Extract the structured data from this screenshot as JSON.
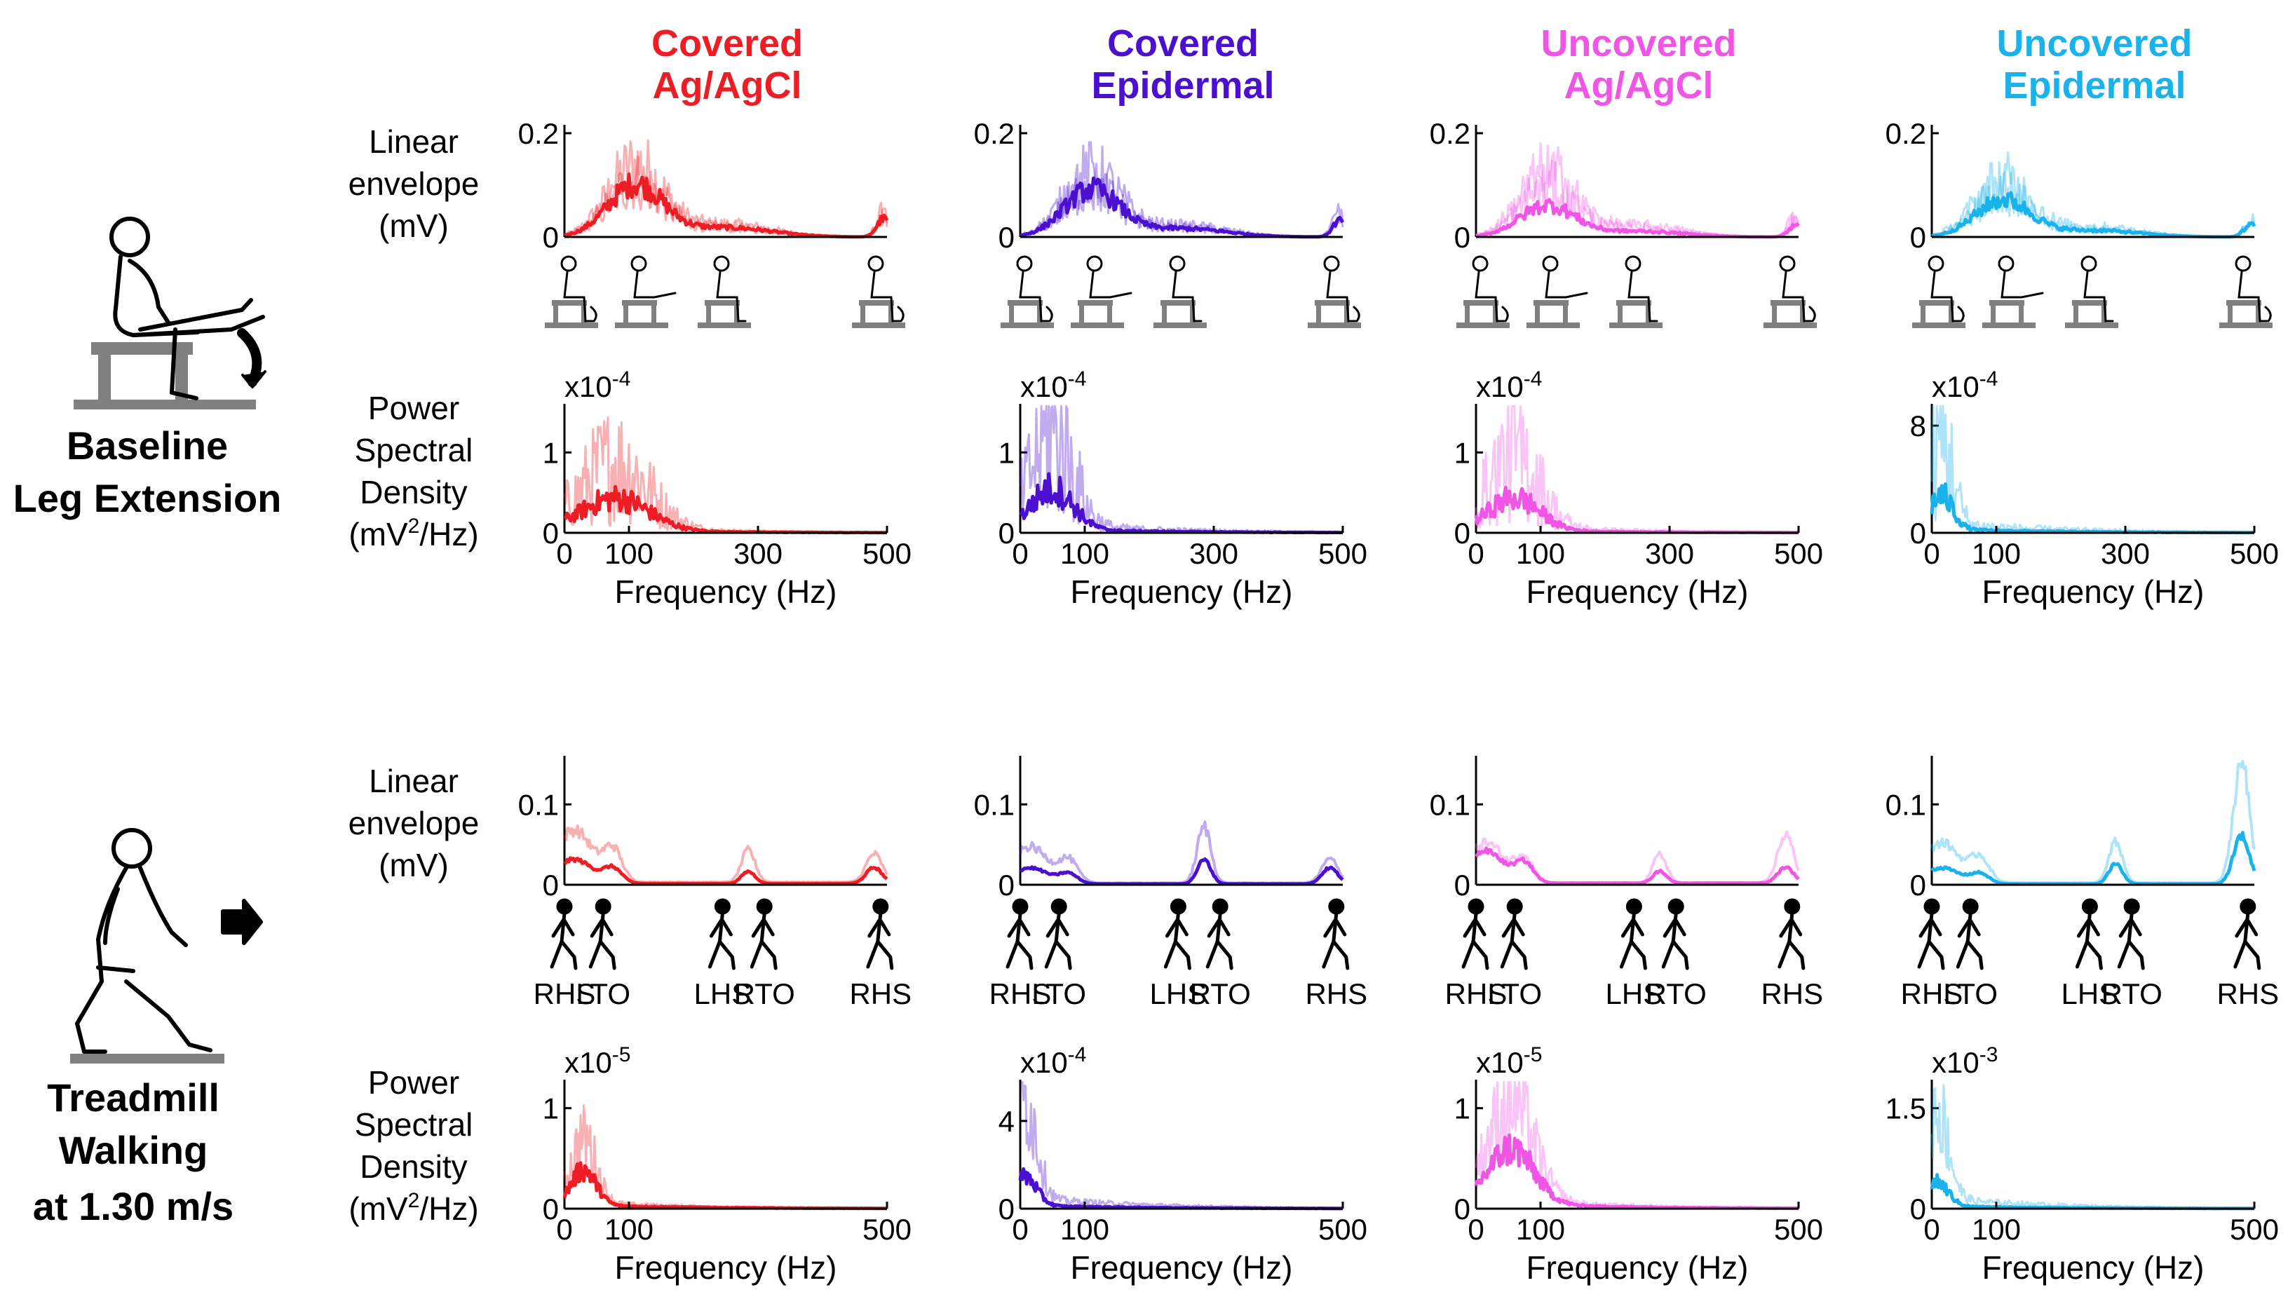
{
  "colors": {
    "covered_agagcl": "#ee1c25",
    "covered_epidermal": "#4a0fcf",
    "uncovered_agagcl": "#f055e6",
    "uncovered_epidermal": "#19b2ea",
    "equipment_gray": "#808080"
  },
  "columns": [
    {
      "line1": "Covered",
      "line2": "Ag/AgCl",
      "color": "#ee1c25"
    },
    {
      "line1": "Covered",
      "line2": "Epidermal",
      "color": "#4a0fcf"
    },
    {
      "line1": "Uncovered",
      "line2": "Ag/AgCl",
      "color": "#f055e6"
    },
    {
      "line1": "Uncovered",
      "line2": "Epidermal",
      "color": "#19b2ea"
    }
  ],
  "conditions": [
    {
      "line1": "Baseline",
      "line2": "Leg Extension",
      "line3": "",
      "icon": "seated-leg-extension-icon"
    },
    {
      "line1": "Treadmill",
      "line2": "Walking",
      "line3": "at 1.30 m/s",
      "icon": "walking-person-icon"
    }
  ],
  "row_labels": {
    "envelope": [
      "Linear",
      "envelope",
      "(mV)"
    ],
    "psd": [
      "Power",
      "Spectral",
      "Density",
      "(mV",
      "2",
      "/Hz)"
    ]
  },
  "gait_events": [
    "RHS",
    "LTO",
    "LHS",
    "RTO",
    "RHS"
  ],
  "chart_data": [
    {
      "type": "line",
      "panel": "baseline-envelope",
      "ylabel": "Linear envelope (mV)",
      "xlabel": "",
      "ylim": [
        0,
        0.2
      ],
      "yticks": [
        "0",
        "0.2"
      ],
      "series_colors": [
        "#ee1c25",
        "#4a0fcf",
        "#f055e6",
        "#19b2ea"
      ],
      "series": [
        {
          "column": "Covered Ag/AgCl",
          "peak_mean": 0.1,
          "peak_individual": 0.19
        },
        {
          "column": "Covered Epidermal",
          "peak_mean": 0.09,
          "peak_individual": 0.17
        },
        {
          "column": "Uncovered Ag/AgCl",
          "peak_mean": 0.06,
          "peak_individual": 0.17
        },
        {
          "column": "Uncovered Epidermal",
          "peak_mean": 0.07,
          "peak_individual": 0.15
        }
      ]
    },
    {
      "type": "line",
      "panel": "baseline-psd",
      "ylabel": "Power Spectral Density (mV2/Hz)",
      "xlabel": "Frequency (Hz)",
      "xlim": [
        0,
        500
      ],
      "xticks": [
        0,
        100,
        300,
        500
      ],
      "series": [
        {
          "column": "Covered Ag/AgCl",
          "scale": "x10^-4",
          "yticks": [
            "0",
            "1"
          ],
          "ylim": [
            0,
            1.5
          ],
          "peak_freq_hz": 80,
          "peak_mean": 0.4,
          "peak_individual": 1.0
        },
        {
          "column": "Covered Epidermal",
          "scale": "x10^-4",
          "yticks": [
            "0",
            "1"
          ],
          "ylim": [
            0,
            1.5
          ],
          "peak_freq_hz": 50,
          "peak_mean": 0.5,
          "peak_individual": 1.4
        },
        {
          "column": "Uncovered Ag/AgCl",
          "scale": "x10^-4",
          "yticks": [
            "0",
            "1"
          ],
          "ylim": [
            0,
            1.5
          ],
          "peak_freq_hz": 60,
          "peak_mean": 0.4,
          "peak_individual": 1.1
        },
        {
          "column": "Uncovered Epidermal",
          "scale": "x10^-4",
          "yticks": [
            "0",
            "8"
          ],
          "ylim": [
            0,
            9
          ],
          "peak_freq_hz": 15,
          "peak_mean": 2.5,
          "peak_individual": 7.8
        }
      ]
    },
    {
      "type": "line",
      "panel": "walking-envelope",
      "ylabel": "Linear envelope (mV)",
      "xlabel": "",
      "ylim": [
        0,
        0.15
      ],
      "yticks": [
        "0",
        "0.1"
      ],
      "xtick_events": [
        "RHS",
        "LTO",
        "LHS",
        "RTO",
        "RHS"
      ],
      "series": [
        {
          "column": "Covered Ag/AgCl",
          "peaks": [
            0.03,
            0.015,
            0.02
          ],
          "peaks_individual": [
            0.065,
            0.04,
            0.035
          ]
        },
        {
          "column": "Covered Epidermal",
          "peaks": [
            0.02,
            0.03,
            0.02
          ],
          "peaks_individual": [
            0.045,
            0.07,
            0.03
          ]
        },
        {
          "column": "Uncovered Ag/AgCl",
          "peaks": [
            0.04,
            0.015,
            0.02
          ],
          "peaks_individual": [
            0.05,
            0.035,
            0.06
          ]
        },
        {
          "column": "Uncovered Epidermal",
          "peaks": [
            0.02,
            0.025,
            0.06
          ],
          "peaks_individual": [
            0.05,
            0.05,
            0.15
          ]
        }
      ]
    },
    {
      "type": "line",
      "panel": "walking-psd",
      "ylabel": "Power Spectral Density (mV2/Hz)",
      "xlabel": "Frequency (Hz)",
      "xlim": [
        0,
        500
      ],
      "xticks": [
        0,
        100,
        500
      ],
      "series": [
        {
          "column": "Covered Ag/AgCl",
          "scale": "x10^-5",
          "yticks": [
            "0",
            "1"
          ],
          "ylim": [
            0,
            1.2
          ],
          "peak_freq_hz": 30,
          "peak_mean": 0.35,
          "peak_individual": 0.75
        },
        {
          "column": "Covered Epidermal",
          "scale": "x10^-4",
          "yticks": [
            "0",
            "4"
          ],
          "ylim": [
            0,
            5.5
          ],
          "peak_freq_hz": 8,
          "peak_mean": 1.3,
          "peak_individual": 5.2
        },
        {
          "column": "Uncovered Ag/AgCl",
          "scale": "x10^-5",
          "yticks": [
            "0",
            "1"
          ],
          "ylim": [
            0,
            1.2
          ],
          "peak_freq_hz": 55,
          "peak_mean": 0.55,
          "peak_individual": 1.15
        },
        {
          "column": "Uncovered Epidermal",
          "scale": "x10^-3",
          "yticks": [
            "0",
            "1.5"
          ],
          "ylim": [
            0,
            1.8
          ],
          "peak_freq_hz": 8,
          "peak_mean": 0.35,
          "peak_individual": 1.6
        }
      ]
    }
  ]
}
